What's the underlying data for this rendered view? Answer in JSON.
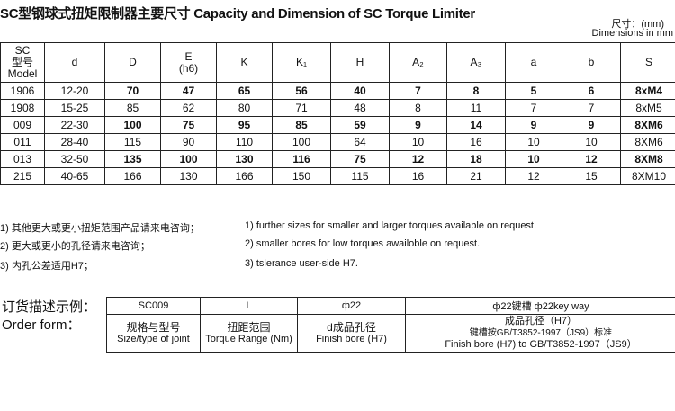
{
  "title": "SC型钢球式扭矩限制器主要尺寸 Capacity and Dimension of SC Torque Limiter",
  "unit_cn": "尺寸：(mm)",
  "unit_en": "Dimensions in mm",
  "headers": [
    "SC\n型号\nModel",
    "d",
    "D",
    "E\n(h6)",
    "K",
    "K₁",
    "H",
    "A₂",
    "A₃",
    "a",
    "b",
    "S"
  ],
  "rows": [
    [
      "1906",
      "12-20",
      "70",
      "47",
      "65",
      "56",
      "40",
      "7",
      "8",
      "5",
      "6",
      "8xM4"
    ],
    [
      "1908",
      "15-25",
      "85",
      "62",
      "80",
      "71",
      "48",
      "8",
      "11",
      "7",
      "7",
      "8xM5"
    ],
    [
      "009",
      "22-30",
      "100",
      "75",
      "95",
      "85",
      "59",
      "9",
      "14",
      "9",
      "9",
      "8XM6"
    ],
    [
      "011",
      "28-40",
      "115",
      "90",
      "110",
      "100",
      "64",
      "10",
      "16",
      "10",
      "10",
      "8XM6"
    ],
    [
      "013",
      "32-50",
      "135",
      "100",
      "130",
      "116",
      "75",
      "12",
      "18",
      "10",
      "12",
      "8XM8"
    ],
    [
      "215",
      "40-65",
      "166",
      "130",
      "166",
      "150",
      "115",
      "16",
      "21",
      "12",
      "15",
      "8XM10"
    ]
  ],
  "notes_cn": [
    "1) 其他更大或更小扭矩范围产品请来电咨询；",
    "2) 更大或更小的孔径请来电咨询；",
    "3) 内孔公差适用H7；"
  ],
  "notes_en": [
    "1) further sizes for smaller and larger torques available on request.",
    "2) smaller bores for low torques awailoble on request.",
    "3) tslerance user-side H7."
  ],
  "order": {
    "label_cn": "订货描述示例：",
    "label_en": "Order form：",
    "values": [
      "SC009",
      "L",
      "ф22",
      "ф22键槽  ф22key way"
    ],
    "desc": [
      [
        "规格与型号",
        "Size/type of joint"
      ],
      [
        "扭距范围",
        "Torque Range (Nm)"
      ],
      [
        "d成品孔径",
        "Finish bore (H7)"
      ],
      [
        "成品孔径（H7）",
        "键槽按GB/T3852-1997（JS9）标准",
        "Finish bore (H7) to GB/T3852-1997（JS9）"
      ]
    ]
  }
}
